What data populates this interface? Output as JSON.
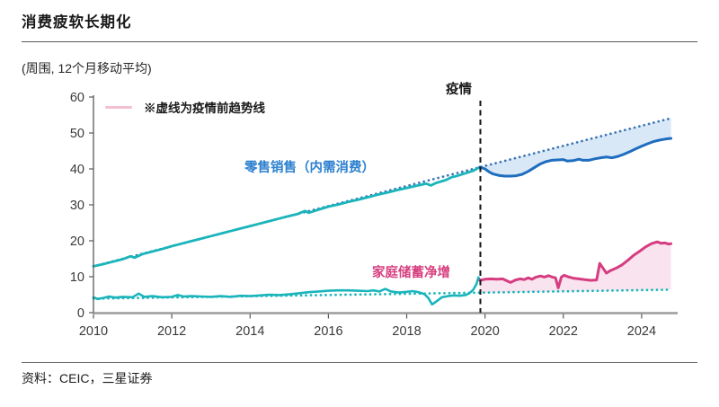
{
  "page": {
    "title": "消费疲软长期化",
    "subtitle": "(周围, 12个月移动平均)",
    "note": "※虚线为疫情前趋势线",
    "pandemic_label": "疫情",
    "retail_label": "零售销售（内需消费）",
    "savings_label": "家庭储蓄净增",
    "source": "资料：CEIC，三星证券"
  },
  "colors": {
    "teal": "#1ab5bb",
    "blue": "#1e6dbf",
    "blue_dotted": "#3a74b5",
    "pink": "#d63c80",
    "blue_fill": "#d9e8f7",
    "pink_fill": "#f8e3ee",
    "axis_dark": "#58595b",
    "axis_gray": "#9b9b9b",
    "tick_text": "#3a3a3a",
    "pandemic_line": "#111111"
  },
  "chart_data": {
    "type": "line",
    "title": "消费疲软长期化",
    "unit_note": "(周围, 12个月移动平均)",
    "xlabel": "",
    "ylabel": "",
    "xlim": [
      2010,
      2024.92
    ],
    "ylim": [
      0,
      60
    ],
    "x_ticks": [
      2010,
      2012,
      2014,
      2016,
      2018,
      2020,
      2022,
      2024
    ],
    "y_ticks": [
      0,
      10,
      20,
      30,
      40,
      50,
      60
    ],
    "grid": false,
    "pandemic_x": 2019.87,
    "annotations": [
      "疫情",
      "※虚线为疫情前趋势线"
    ],
    "series": [
      {
        "name": "零售销售（内需消费）疫情前实际",
        "color": "#1ab5bb",
        "style": "solid",
        "width": 2.8,
        "points": [
          [
            2010,
            12.9
          ],
          [
            2010.25,
            13.5
          ],
          [
            2010.5,
            14.2
          ],
          [
            2010.75,
            14.9
          ],
          [
            2010.95,
            15.7
          ],
          [
            2011.05,
            15.3
          ],
          [
            2011.25,
            16.3
          ],
          [
            2011.5,
            17.0
          ],
          [
            2011.75,
            17.7
          ],
          [
            2012,
            18.5
          ],
          [
            2012.25,
            19.2
          ],
          [
            2012.5,
            19.9
          ],
          [
            2012.75,
            20.6
          ],
          [
            2013,
            21.3
          ],
          [
            2013.25,
            22.0
          ],
          [
            2013.5,
            22.7
          ],
          [
            2013.75,
            23.4
          ],
          [
            2014,
            24.1
          ],
          [
            2014.25,
            24.8
          ],
          [
            2014.5,
            25.5
          ],
          [
            2014.75,
            26.2
          ],
          [
            2015,
            26.9
          ],
          [
            2015.2,
            27.4
          ],
          [
            2015.4,
            28.3
          ],
          [
            2015.5,
            27.8
          ],
          [
            2015.7,
            28.5
          ],
          [
            2016,
            29.5
          ],
          [
            2016.25,
            30.1
          ],
          [
            2016.5,
            30.8
          ],
          [
            2016.75,
            31.4
          ],
          [
            2017,
            32.1
          ],
          [
            2017.25,
            32.8
          ],
          [
            2017.5,
            33.4
          ],
          [
            2017.75,
            34.1
          ],
          [
            2018,
            34.7
          ],
          [
            2018.25,
            35.3
          ],
          [
            2018.5,
            35.9
          ],
          [
            2018.62,
            35.4
          ],
          [
            2018.75,
            36.1
          ],
          [
            2019,
            36.9
          ],
          [
            2019.15,
            37.7
          ],
          [
            2019.3,
            38.1
          ],
          [
            2019.5,
            38.8
          ],
          [
            2019.7,
            39.5
          ],
          [
            2019.87,
            40.5
          ]
        ]
      },
      {
        "name": "零售销售（内需消费）疫情后实际",
        "color": "#1e6dbf",
        "style": "solid",
        "width": 3,
        "points": [
          [
            2019.87,
            40.5
          ],
          [
            2020,
            40.0
          ],
          [
            2020.1,
            39.2
          ],
          [
            2020.2,
            38.6
          ],
          [
            2020.35,
            38.2
          ],
          [
            2020.5,
            38.0
          ],
          [
            2020.65,
            38.0
          ],
          [
            2020.8,
            38.1
          ],
          [
            2020.95,
            38.5
          ],
          [
            2021.1,
            39.3
          ],
          [
            2021.25,
            40.3
          ],
          [
            2021.4,
            41.3
          ],
          [
            2021.55,
            42.0
          ],
          [
            2021.7,
            42.4
          ],
          [
            2021.85,
            42.5
          ],
          [
            2022,
            42.6
          ],
          [
            2022.1,
            42.2
          ],
          [
            2022.25,
            42.3
          ],
          [
            2022.4,
            42.7
          ],
          [
            2022.5,
            42.4
          ],
          [
            2022.65,
            42.4
          ],
          [
            2022.8,
            42.8
          ],
          [
            2022.95,
            43.1
          ],
          [
            2023.1,
            43.3
          ],
          [
            2023.25,
            43.1
          ],
          [
            2023.4,
            43.5
          ],
          [
            2023.55,
            44.1
          ],
          [
            2023.7,
            44.8
          ],
          [
            2023.85,
            45.6
          ],
          [
            2024,
            46.3
          ],
          [
            2024.15,
            47.0
          ],
          [
            2024.3,
            47.6
          ],
          [
            2024.45,
            48.0
          ],
          [
            2024.6,
            48.3
          ],
          [
            2024.75,
            48.5
          ]
        ]
      },
      {
        "name": "零售销售疫情前趋势线",
        "color": "#3a74b5",
        "style": "dotted",
        "width": 2.7,
        "points": [
          [
            2010,
            12.9
          ],
          [
            2024.75,
            54.1
          ]
        ]
      },
      {
        "name": "家庭储蓄净增疫情前实际",
        "color": "#1ab5bb",
        "style": "solid",
        "width": 2.6,
        "points": [
          [
            2010,
            4.3
          ],
          [
            2010.1,
            3.8
          ],
          [
            2010.25,
            4.1
          ],
          [
            2010.4,
            4.5
          ],
          [
            2010.55,
            4.2
          ],
          [
            2010.75,
            4.4
          ],
          [
            2011,
            4.3
          ],
          [
            2011.15,
            5.3
          ],
          [
            2011.3,
            4.4
          ],
          [
            2011.5,
            4.6
          ],
          [
            2011.75,
            4.3
          ],
          [
            2012,
            4.4
          ],
          [
            2012.15,
            4.9
          ],
          [
            2012.3,
            4.5
          ],
          [
            2012.5,
            4.6
          ],
          [
            2012.75,
            4.5
          ],
          [
            2013,
            4.4
          ],
          [
            2013.25,
            4.6
          ],
          [
            2013.5,
            4.4
          ],
          [
            2013.75,
            4.7
          ],
          [
            2014,
            4.6
          ],
          [
            2014.25,
            4.8
          ],
          [
            2014.5,
            5.0
          ],
          [
            2014.75,
            4.9
          ],
          [
            2015,
            5.1
          ],
          [
            2015.25,
            5.4
          ],
          [
            2015.5,
            5.7
          ],
          [
            2015.75,
            5.9
          ],
          [
            2016,
            6.1
          ],
          [
            2016.25,
            6.2
          ],
          [
            2016.5,
            6.2
          ],
          [
            2016.75,
            6.1
          ],
          [
            2017,
            6.0
          ],
          [
            2017.15,
            6.2
          ],
          [
            2017.3,
            5.9
          ],
          [
            2017.45,
            6.6
          ],
          [
            2017.6,
            5.9
          ],
          [
            2017.8,
            5.6
          ],
          [
            2018,
            5.8
          ],
          [
            2018.15,
            6.0
          ],
          [
            2018.3,
            5.7
          ],
          [
            2018.45,
            5.2
          ],
          [
            2018.55,
            4.1
          ],
          [
            2018.65,
            2.3
          ],
          [
            2018.78,
            3.3
          ],
          [
            2018.9,
            4.3
          ],
          [
            2019.05,
            4.6
          ],
          [
            2019.2,
            4.8
          ],
          [
            2019.35,
            4.7
          ],
          [
            2019.5,
            4.9
          ],
          [
            2019.6,
            5.4
          ],
          [
            2019.7,
            6.4
          ],
          [
            2019.78,
            7.9
          ],
          [
            2019.83,
            9.8
          ],
          [
            2019.87,
            9.0
          ]
        ]
      },
      {
        "name": "家庭储蓄净增疫情后实际",
        "color": "#d63c80",
        "style": "solid",
        "width": 3,
        "points": [
          [
            2019.87,
            9.0
          ],
          [
            2020,
            9.3
          ],
          [
            2020.15,
            9.4
          ],
          [
            2020.3,
            9.3
          ],
          [
            2020.45,
            9.4
          ],
          [
            2020.55,
            8.9
          ],
          [
            2020.65,
            8.4
          ],
          [
            2020.78,
            9.1
          ],
          [
            2020.9,
            9.4
          ],
          [
            2021,
            9.2
          ],
          [
            2021.1,
            9.7
          ],
          [
            2021.2,
            9.3
          ],
          [
            2021.3,
            9.9
          ],
          [
            2021.42,
            10.2
          ],
          [
            2021.52,
            9.9
          ],
          [
            2021.62,
            10.3
          ],
          [
            2021.72,
            9.9
          ],
          [
            2021.8,
            9.7
          ],
          [
            2021.87,
            6.9
          ],
          [
            2021.95,
            9.9
          ],
          [
            2022.02,
            10.4
          ],
          [
            2022.12,
            10.0
          ],
          [
            2022.25,
            9.6
          ],
          [
            2022.4,
            9.4
          ],
          [
            2022.55,
            9.2
          ],
          [
            2022.7,
            9.0
          ],
          [
            2022.85,
            9.1
          ],
          [
            2022.93,
            13.7
          ],
          [
            2023.02,
            12.3
          ],
          [
            2023.1,
            11.0
          ],
          [
            2023.2,
            11.7
          ],
          [
            2023.35,
            12.4
          ],
          [
            2023.5,
            13.3
          ],
          [
            2023.65,
            14.6
          ],
          [
            2023.8,
            16.0
          ],
          [
            2023.95,
            17.1
          ],
          [
            2024.1,
            18.3
          ],
          [
            2024.25,
            19.2
          ],
          [
            2024.4,
            19.7
          ],
          [
            2024.5,
            19.3
          ],
          [
            2024.6,
            19.4
          ],
          [
            2024.68,
            19.1
          ],
          [
            2024.75,
            19.2
          ]
        ]
      },
      {
        "name": "家庭储蓄疫情前趋势线",
        "color": "#1ab5bb",
        "style": "dotted",
        "width": 2.7,
        "points": [
          [
            2010,
            3.9
          ],
          [
            2024.75,
            6.4
          ]
        ]
      }
    ],
    "fills": [
      {
        "upper": 2,
        "lower": 1,
        "from": 2019.87,
        "to": 2024.75,
        "color": "#d9e8f7"
      },
      {
        "upper": 4,
        "lower": 5,
        "from": 2019.87,
        "to": 2024.75,
        "color": "#f8e3ee"
      }
    ]
  }
}
